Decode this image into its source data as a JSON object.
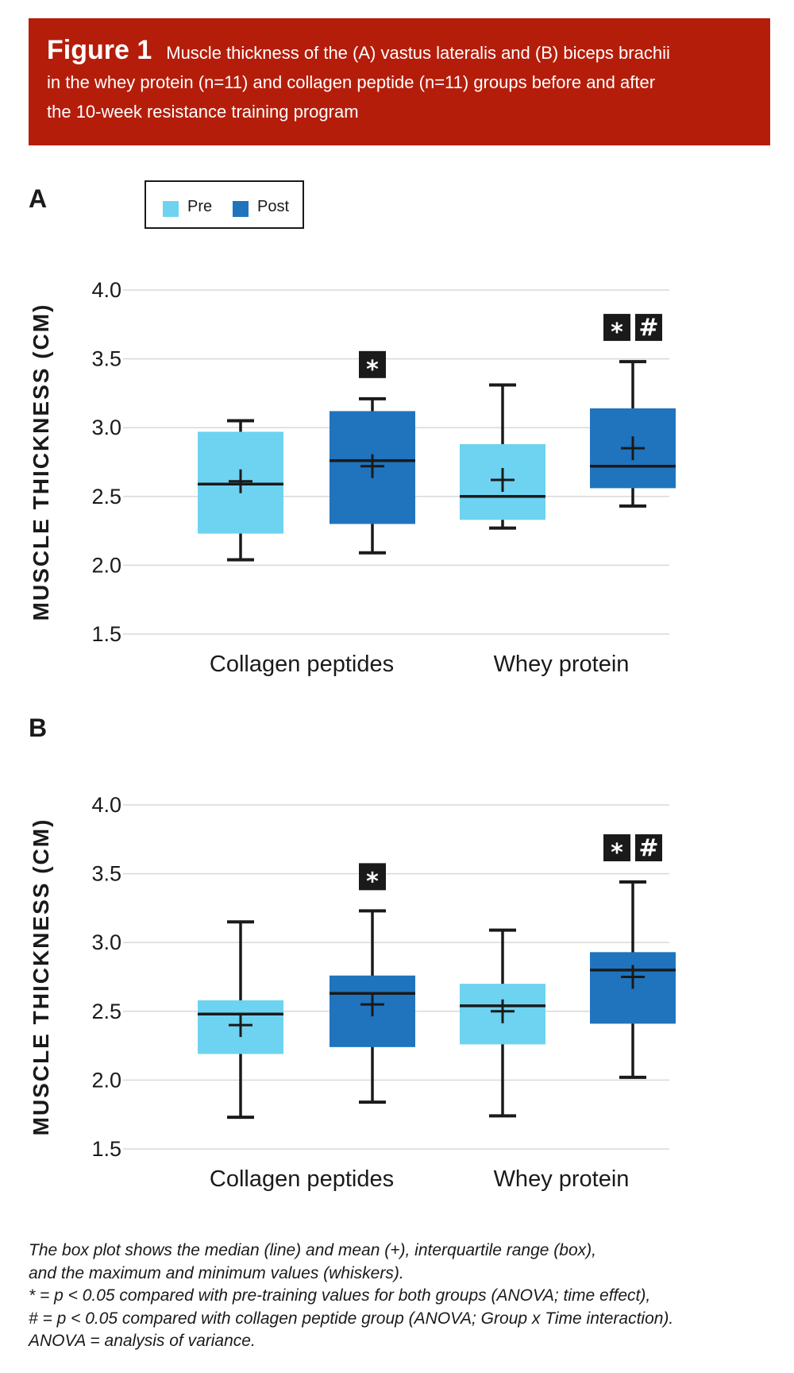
{
  "header": {
    "figure_label": "Figure 1",
    "title_line1": "Muscle thickness of the (A) vastus lateralis and (B) biceps brachii",
    "title_line2": "in the whey protein (n=11) and collagen peptide (n=11) groups before and after",
    "title_line3": "the 10-week resistance training program"
  },
  "colors": {
    "banner": "#b51d0b",
    "pre": "#6dd3f0",
    "post": "#1f74bd",
    "ink": "#1a1a1a",
    "grid": "#d9d9d9"
  },
  "legend": {
    "pre_label": "Pre",
    "post_label": "Post"
  },
  "footnote": {
    "line1": "The box plot shows the median (line) and mean (+), interquartile range (box),",
    "line2": "and the maximum and minimum values (whiskers).",
    "line3": "* = p < 0.05 compared with pre-training values for both groups (ANOVA; time effect),",
    "line4": "# = p < 0.05 compared with collagen peptide group (ANOVA; Group x Time interaction).",
    "line5": "ANOVA = analysis of variance."
  },
  "chart_data": [
    {
      "type": "box",
      "panel": "A",
      "ylabel": "MUSCLE THICKNESS (CM)",
      "ylim": [
        1.5,
        4.0
      ],
      "yticks": [
        "4.0",
        "3.5",
        "3.0",
        "2.5",
        "2.0",
        "1.5"
      ],
      "grid": true,
      "legend": "top-left",
      "categories": [
        "Collagen peptides",
        "Whey protein"
      ],
      "series": [
        {
          "name": "Pre",
          "boxes": [
            {
              "min": 2.04,
              "q1": 2.23,
              "median": 2.59,
              "mean": 2.61,
              "q3": 2.97,
              "max": 3.05,
              "annotations": []
            },
            {
              "min": 2.27,
              "q1": 2.33,
              "median": 2.5,
              "mean": 2.62,
              "q3": 2.88,
              "max": 3.31,
              "annotations": []
            }
          ]
        },
        {
          "name": "Post",
          "boxes": [
            {
              "min": 2.09,
              "q1": 2.3,
              "median": 2.76,
              "mean": 2.72,
              "q3": 3.12,
              "max": 3.21,
              "annotations": [
                "*"
              ]
            },
            {
              "min": 2.43,
              "q1": 2.56,
              "median": 2.72,
              "mean": 2.85,
              "q3": 3.14,
              "max": 3.48,
              "annotations": [
                "*",
                "#"
              ]
            }
          ]
        }
      ]
    },
    {
      "type": "box",
      "panel": "B",
      "ylabel": "MUSCLE THICKNESS (CM)",
      "ylim": [
        1.5,
        4.0
      ],
      "yticks": [
        "4.0",
        "3.5",
        "3.0",
        "2.5",
        "2.0",
        "1.5"
      ],
      "grid": true,
      "categories": [
        "Collagen peptides",
        "Whey protein"
      ],
      "series": [
        {
          "name": "Pre",
          "boxes": [
            {
              "min": 1.73,
              "q1": 2.19,
              "median": 2.48,
              "mean": 2.4,
              "q3": 2.58,
              "max": 3.15,
              "annotations": []
            },
            {
              "min": 1.74,
              "q1": 2.26,
              "median": 2.54,
              "mean": 2.5,
              "q3": 2.7,
              "max": 3.09,
              "annotations": []
            }
          ]
        },
        {
          "name": "Post",
          "boxes": [
            {
              "min": 1.84,
              "q1": 2.24,
              "median": 2.63,
              "mean": 2.55,
              "q3": 2.76,
              "max": 3.23,
              "annotations": [
                "*"
              ]
            },
            {
              "min": 2.02,
              "q1": 2.41,
              "median": 2.8,
              "mean": 2.75,
              "q3": 2.93,
              "max": 3.44,
              "annotations": [
                "*",
                "#"
              ]
            }
          ]
        }
      ]
    }
  ]
}
